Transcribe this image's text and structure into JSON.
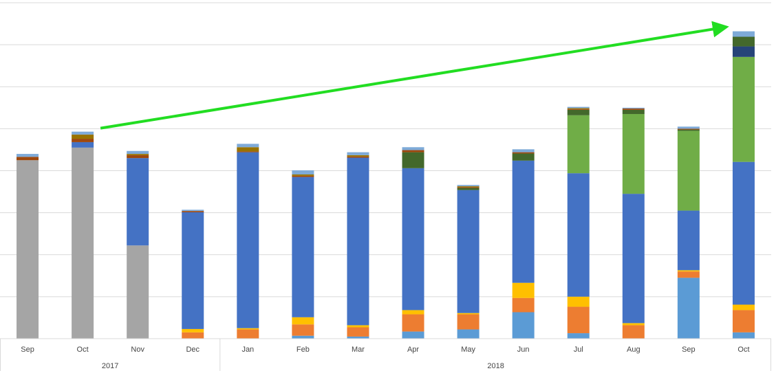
{
  "chart_data": {
    "type": "bar",
    "stacked": true,
    "title": "",
    "xlabel": "",
    "ylabel": "",
    "ylim": [
      0,
      80
    ],
    "grid": true,
    "y_tick_labels_visible": false,
    "legend": "none",
    "categories": [
      "Sep",
      "Oct",
      "Nov",
      "Dec",
      "Jan",
      "Feb",
      "Mar",
      "Apr",
      "May",
      "Jun",
      "Jul",
      "Aug",
      "Sep",
      "Oct"
    ],
    "groups": [
      {
        "label": "2017",
        "start": 0,
        "end": 3
      },
      {
        "label": "2018",
        "start": 4,
        "end": 13
      }
    ],
    "series": [
      {
        "color": "#5b9bd5",
        "values": [
          0,
          0,
          0,
          0,
          0,
          0.7,
          0.5,
          1.7,
          2.2,
          6.3,
          1.3,
          0,
          14.5,
          1.5
        ]
      },
      {
        "color": "#ed7d31",
        "values": [
          0,
          0,
          0,
          1.5,
          2.2,
          2.7,
          2.2,
          4.1,
          3.6,
          3.4,
          6.3,
          3.2,
          1.5,
          5.3
        ]
      },
      {
        "color": "#ffc000",
        "values": [
          0,
          0,
          0,
          0.8,
          0.3,
          1.7,
          0.5,
          1.0,
          0.3,
          3.6,
          2.4,
          0.5,
          0.3,
          1.3
        ]
      },
      {
        "color": "#a5a5a5",
        "values": [
          42.5,
          45.5,
          22.2,
          0,
          0,
          0,
          0,
          0,
          0,
          0,
          0,
          0,
          0,
          0
        ]
      },
      {
        "color": "#4472c4",
        "values": [
          0,
          1.3,
          20.8,
          27.8,
          41.9,
          33.4,
          39.9,
          33.8,
          29.3,
          29.1,
          29.4,
          30.8,
          14.2,
          34.0
        ]
      },
      {
        "color": "#70ad47",
        "values": [
          0,
          0,
          0,
          0,
          0,
          0,
          0,
          0,
          0,
          0,
          13.8,
          19.0,
          19.0,
          25.0
        ]
      },
      {
        "color": "#264478",
        "values": [
          0,
          0,
          0,
          0,
          0,
          0,
          0,
          0,
          0,
          0,
          0,
          0,
          0,
          2.5
        ]
      },
      {
        "color": "#43682b",
        "values": [
          0,
          0,
          0,
          0,
          0,
          0,
          0,
          3.8,
          0.5,
          1.7,
          1.3,
          1.0,
          0.3,
          2.3
        ]
      },
      {
        "color": "#9e480e",
        "values": [
          0.8,
          0.8,
          0.7,
          0.3,
          0.2,
          0.3,
          0.3,
          0.5,
          0.2,
          0.3,
          0.2,
          0.3,
          0.2,
          0
        ]
      },
      {
        "color": "#997300",
        "values": [
          0,
          1.0,
          0.3,
          0,
          1.0,
          0.3,
          0.3,
          0,
          0.2,
          0,
          0.2,
          0,
          0,
          0
        ]
      },
      {
        "color": "#7eaad8",
        "values": [
          0.7,
          0.7,
          0.7,
          0.3,
          0.8,
          1.0,
          0.7,
          0.7,
          0.3,
          0.7,
          0.3,
          0.2,
          0.5,
          1.3
        ]
      }
    ],
    "annotation": {
      "type": "arrow",
      "color": "#22dd22",
      "from_category": 1,
      "to_category": 13
    }
  }
}
